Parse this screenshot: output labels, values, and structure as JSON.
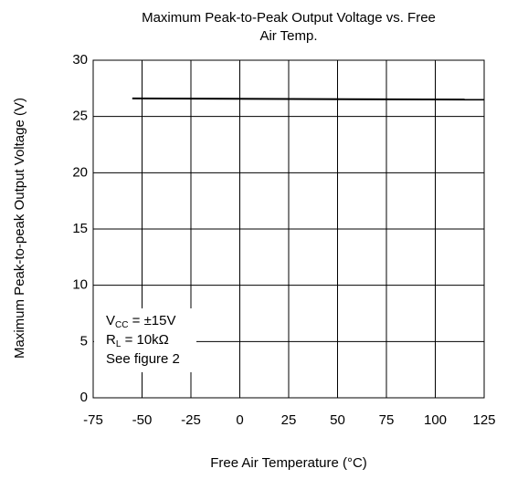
{
  "chart_data": {
    "type": "line",
    "title": [
      "Maximum Peak-to-Peak Output Voltage vs. Free",
      "Air Temp."
    ],
    "xlabel": "Free Air Temperature (°C)",
    "ylabel": "Maximum Peak-to-peak Output Voltage (V)",
    "x": [
      -55,
      125
    ],
    "series": [
      {
        "name": null,
        "color": "#000000",
        "values": [
          26.6,
          26.5
        ]
      }
    ],
    "xlim": [
      -75,
      125
    ],
    "xticks": [
      -75,
      -50,
      -25,
      0,
      25,
      50,
      75,
      100,
      125
    ],
    "ylim": [
      0,
      30
    ],
    "yticks": [
      0,
      5,
      10,
      15,
      20,
      25,
      30
    ],
    "grid": true,
    "annotations": [
      {
        "text": "V",
        "sub": "CC",
        "after": " = ±15V"
      },
      {
        "text": "R",
        "sub": "L",
        "after": " = 10kΩ"
      },
      {
        "text": "See figure 2"
      }
    ]
  }
}
